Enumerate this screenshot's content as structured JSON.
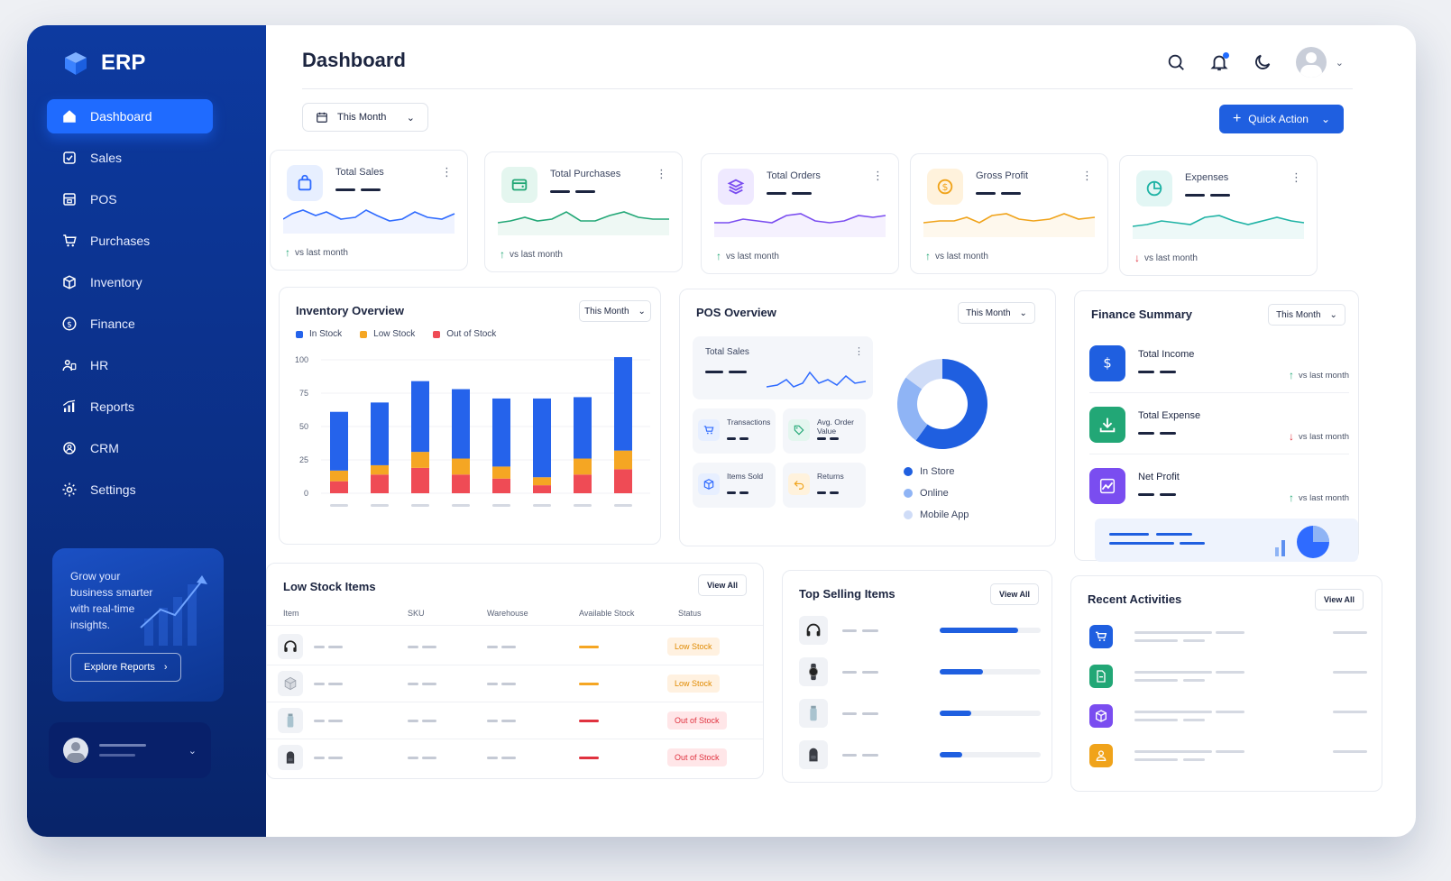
{
  "app": {
    "name": "ERP"
  },
  "sidebar": {
    "items": [
      {
        "label": "Dashboard",
        "icon": "home-icon",
        "active": true
      },
      {
        "label": "Sales",
        "icon": "check-square-icon"
      },
      {
        "label": "POS",
        "icon": "pos-icon"
      },
      {
        "label": "Purchases",
        "icon": "cart-icon"
      },
      {
        "label": "Inventory",
        "icon": "box-icon"
      },
      {
        "label": "Finance",
        "icon": "dollar-circle-icon"
      },
      {
        "label": "HR",
        "icon": "hr-icon"
      },
      {
        "label": "Reports",
        "icon": "bar-chart-icon"
      },
      {
        "label": "CRM",
        "icon": "crm-icon"
      },
      {
        "label": "Settings",
        "icon": "gear-icon"
      }
    ],
    "promo": {
      "text": "Grow your business smarter with real-time insights.",
      "button": "Explore Reports"
    }
  },
  "header": {
    "title": "Dashboard"
  },
  "toolbar": {
    "period": "This Month",
    "quick_action": "Quick Action"
  },
  "kpis": [
    {
      "label": "Total Sales",
      "footer": "vs last month",
      "trend": "up",
      "color": "#2f6bff"
    },
    {
      "label": "Total Purchases",
      "footer": "vs last month",
      "trend": "up",
      "color": "#22a776"
    },
    {
      "label": "Total Orders",
      "footer": "vs last month",
      "trend": "up",
      "color": "#7a4df0"
    },
    {
      "label": "Gross Profit",
      "footer": "vs last month",
      "trend": "up",
      "color": "#f0a31a"
    },
    {
      "label": "Expenses",
      "footer": "vs last month",
      "trend": "down",
      "color": "#1fb3a5"
    }
  ],
  "inventory": {
    "title": "Inventory Overview",
    "period": "This Month",
    "legend": [
      "In Stock",
      "Low Stock",
      "Out of Stock"
    ],
    "colors": [
      "#2563eb",
      "#f5a623",
      "#ef4b55"
    ],
    "chart_data": {
      "type": "bar",
      "stacked": true,
      "ylim": [
        0,
        100
      ],
      "yticks": [
        0,
        25,
        50,
        75,
        100
      ],
      "series": [
        {
          "name": "In Stock",
          "values": [
            44,
            47,
            53,
            52,
            51,
            59,
            46,
            70
          ]
        },
        {
          "name": "Low Stock",
          "values": [
            8,
            7,
            12,
            12,
            9,
            6,
            12,
            14
          ]
        },
        {
          "name": "Out of Stock",
          "values": [
            9,
            14,
            19,
            14,
            11,
            6,
            14,
            18
          ]
        }
      ]
    }
  },
  "pos": {
    "title": "POS Overview",
    "period": "This Month",
    "total_sales": "Total Sales",
    "metrics": [
      "Transactions",
      "Avg. Order Value",
      "Items Sold",
      "Returns"
    ],
    "legend": [
      "In Store",
      "Online",
      "Mobile App"
    ],
    "donut": {
      "values": [
        60,
        25,
        15
      ],
      "colors": [
        "#1f5fe0",
        "#8fb4f5",
        "#cfdcf7"
      ]
    }
  },
  "finance": {
    "title": "Finance Summary",
    "period": "This Month",
    "items": [
      {
        "label": "Total Income",
        "footer": "vs last month",
        "trend": "up"
      },
      {
        "label": "Total Expense",
        "footer": "vs last month",
        "trend": "down"
      },
      {
        "label": "Net Profit",
        "footer": "vs last month",
        "trend": "up"
      }
    ]
  },
  "low_stock": {
    "title": "Low Stock Items",
    "view_all": "View All",
    "columns": [
      "Item",
      "SKU",
      "Warehouse",
      "Available Stock",
      "Status"
    ],
    "rows": [
      {
        "icon": "headphones-icon",
        "status": "Low Stock"
      },
      {
        "icon": "box-icon",
        "status": "Low Stock"
      },
      {
        "icon": "bottle-icon",
        "status": "Out of Stock"
      },
      {
        "icon": "backpack-icon",
        "status": "Out of Stock"
      }
    ]
  },
  "top_selling": {
    "title": "Top Selling Items",
    "view_all": "View All",
    "progress": [
      0.78,
      0.43,
      0.31,
      0.22
    ]
  },
  "recent": {
    "title": "Recent Activities",
    "view_all": "View All"
  }
}
